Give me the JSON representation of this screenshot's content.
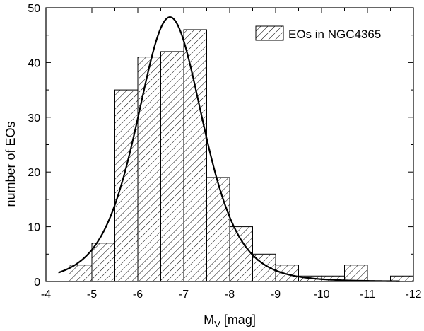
{
  "chart_data": {
    "type": "bar",
    "title": "",
    "xlabel_main": "M",
    "xlabel_sub": "V",
    "xlabel_unit": " [mag]",
    "ylabel": "number of EOs",
    "xlim": [
      -4,
      -12
    ],
    "ylim": [
      0,
      50
    ],
    "x_ticks": [
      -4,
      -5,
      -6,
      -7,
      -8,
      -9,
      -10,
      -11,
      -12
    ],
    "y_ticks": [
      0,
      10,
      20,
      30,
      40,
      50
    ],
    "bin_width": 0.5,
    "series": [
      {
        "name": "EOs in NGC4365",
        "kind": "histogram",
        "bin_left_edges": [
          -4.5,
          -5.0,
          -5.5,
          -6.0,
          -6.5,
          -7.0,
          -7.5,
          -8.0,
          -8.5,
          -9.0,
          -9.5,
          -10.0,
          -10.5,
          -11.0,
          -11.5
        ],
        "values": [
          3,
          7,
          35,
          41,
          42,
          46,
          19,
          10,
          5,
          3,
          1,
          1,
          3,
          0,
          1
        ]
      },
      {
        "name": "fit",
        "kind": "line",
        "model": "t5",
        "peak": 48.3,
        "peak_x": -6.7,
        "sigma": 0.75,
        "x_range": [
          -4.27,
          -11.7
        ]
      }
    ],
    "legend": {
      "position": "top-right",
      "label": "EOs in NGC4365"
    }
  }
}
